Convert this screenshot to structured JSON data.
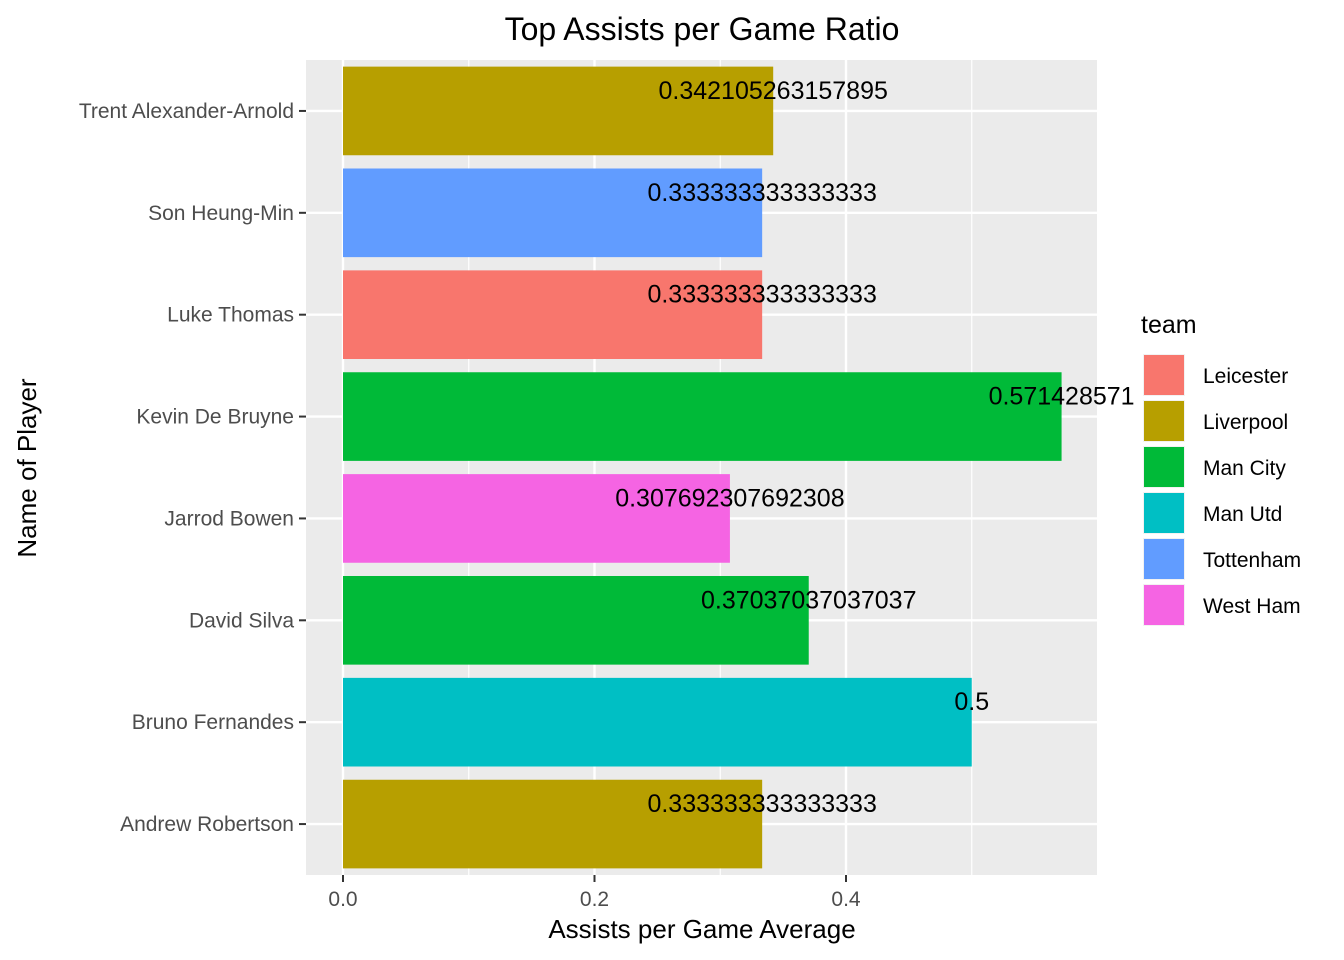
{
  "chart_data": {
    "type": "bar",
    "orientation": "horizontal",
    "title": "Top Assists per Game Ratio",
    "xlabel": "Assists per Game Average",
    "ylabel": "Name of Player",
    "xlim": [
      -0.07,
      0.6
    ],
    "xticks": [
      0.0,
      0.2,
      0.4
    ],
    "xtick_labels": [
      "0.0",
      "0.2",
      "0.4"
    ],
    "grid": true,
    "legend": {
      "title": "team",
      "placement": "right",
      "entries": [
        {
          "name": "Leicester",
          "color": "#F8766D"
        },
        {
          "name": "Liverpool",
          "color": "#B79F00"
        },
        {
          "name": "Man City",
          "color": "#00BA38"
        },
        {
          "name": "Man Utd",
          "color": "#00BFC4"
        },
        {
          "name": "Tottenham",
          "color": "#619CFF"
        },
        {
          "name": "West Ham",
          "color": "#F564E3"
        }
      ]
    },
    "bars": [
      {
        "player": "Trent Alexander-Arnold",
        "team": "Liverpool",
        "value": 0.342105263157895,
        "label": "0.342105263157895"
      },
      {
        "player": "Son Heung-Min",
        "team": "Tottenham",
        "value": 0.333333333333333,
        "label": "0.333333333333333"
      },
      {
        "player": "Luke Thomas",
        "team": "Leicester",
        "value": 0.333333333333333,
        "label": "0.333333333333333"
      },
      {
        "player": "Kevin De Bruyne",
        "team": "Man City",
        "value": 0.571428571,
        "label": "0.571428571"
      },
      {
        "player": "Jarrod Bowen",
        "team": "West Ham",
        "value": 0.307692307692308,
        "label": "0.307692307692308"
      },
      {
        "player": "David Silva",
        "team": "Man City",
        "value": 0.37037037037037,
        "label": "0.37037037037037"
      },
      {
        "player": "Bruno Fernandes",
        "team": "Man Utd",
        "value": 0.5,
        "label": "0.5"
      },
      {
        "player": "Andrew Robertson",
        "team": "Liverpool",
        "value": 0.333333333333333,
        "label": "0.333333333333333"
      }
    ]
  }
}
